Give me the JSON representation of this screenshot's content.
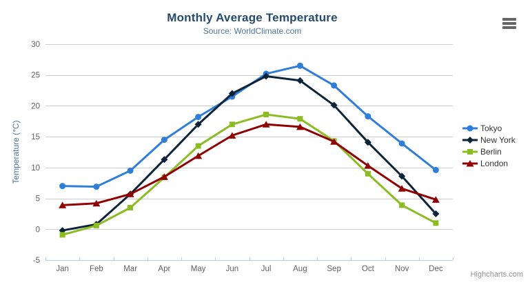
{
  "window": {
    "credit": "Highcharts.com"
  },
  "export_menu": {
    "icon": "hamburger-icon"
  },
  "chart_data": {
    "type": "line",
    "title": "Monthly Average Temperature",
    "subtitle": "Source: WorldClimate.com",
    "xlabel": "",
    "ylabel": "Temperature (°C)",
    "categories": [
      "Jan",
      "Feb",
      "Mar",
      "Apr",
      "May",
      "Jun",
      "Jul",
      "Aug",
      "Sep",
      "Oct",
      "Nov",
      "Dec"
    ],
    "series": [
      {
        "name": "Tokyo",
        "color": "#2f7ed8",
        "marker": "circle",
        "values": [
          7.0,
          6.9,
          9.5,
          14.5,
          18.2,
          21.5,
          25.2,
          26.5,
          23.3,
          18.3,
          13.9,
          9.6
        ]
      },
      {
        "name": "New York",
        "color": "#0d233a",
        "marker": "diamond",
        "values": [
          -0.2,
          0.8,
          5.7,
          11.3,
          17.0,
          22.0,
          24.8,
          24.1,
          20.1,
          14.1,
          8.6,
          2.5
        ]
      },
      {
        "name": "Berlin",
        "color": "#8bbc21",
        "marker": "square",
        "values": [
          -0.9,
          0.6,
          3.5,
          8.4,
          13.5,
          17.0,
          18.6,
          17.9,
          14.3,
          9.0,
          3.9,
          1.0
        ]
      },
      {
        "name": "London",
        "color": "#910000",
        "marker": "triangle",
        "values": [
          3.9,
          4.2,
          5.7,
          8.5,
          11.9,
          15.2,
          17.0,
          16.6,
          14.2,
          10.3,
          6.6,
          4.8
        ]
      }
    ],
    "ylim": [
      -5,
      30
    ],
    "ytick_step": 5,
    "yticks": [
      -5,
      0,
      5,
      10,
      15,
      20,
      25,
      30
    ],
    "grid": true,
    "legend_position": "right-middle",
    "styles": {
      "title_color": "#274b6d",
      "subtitle_color": "#4d759e",
      "axis_title_color": "#4d759e",
      "axis_label_color": "#606060",
      "grid_color": "#cccccc",
      "xaxis_line_color": "#c0d0e0",
      "legend_text_color": "#333333",
      "credit_color": "#909090",
      "menu_icon_color": "#666666"
    }
  }
}
